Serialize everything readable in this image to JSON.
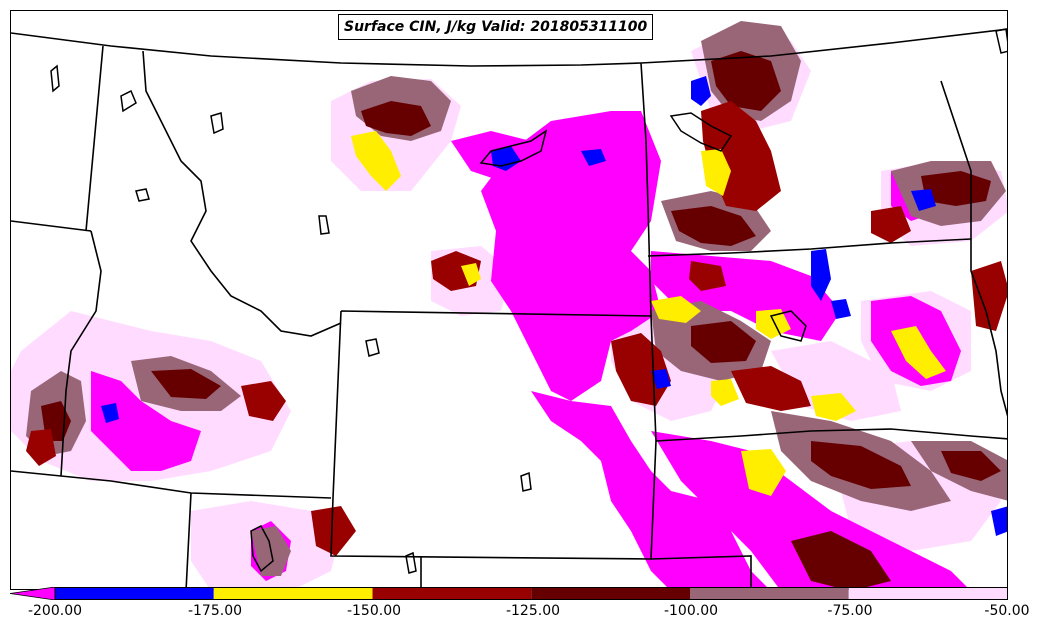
{
  "title": "Surface CIN, J/kg Valid: 201805311100",
  "colors": {
    "lt_-175": "#ff00ff",
    "-175_-150": "#0000ff",
    "-150_-125": "#ffee00",
    "-125_-100": "#990000",
    "-100_-75": "#660000",
    "-75_-50_dark": "#996677",
    "-75_-50_light": "#ffdcff",
    "background": "#ffffff",
    "borders": "#000000"
  },
  "colorbar": {
    "ticks": [
      "-200.00",
      "-175.00",
      "-150.00",
      "-125.00",
      "-100.00",
      "-75.00",
      "-50.00"
    ],
    "segment_colors": [
      "#0000ff",
      "#ffee00",
      "#990000",
      "#660000",
      "#996677",
      "#ffdcff"
    ],
    "under_color": "#ff00ff"
  },
  "map": {
    "projection": "lambert-conformal",
    "region": "US Northern Plains and Rocky Mountains"
  }
}
